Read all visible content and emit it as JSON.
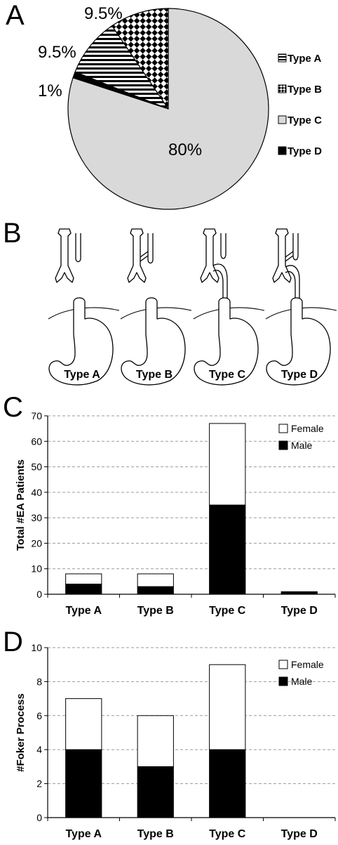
{
  "panels": {
    "a": "A",
    "b": "B",
    "c": "C",
    "d": "D"
  },
  "diagram": {
    "labels": [
      "Type A",
      "Type B",
      "Type C",
      "Type D"
    ]
  },
  "chart_data": [
    {
      "type": "pie",
      "categories": [
        "Type A",
        "Type B",
        "Type C",
        "Type D"
      ],
      "values": [
        9.5,
        9.5,
        80,
        1
      ],
      "slice_labels": [
        "9.5%",
        "9.5%",
        "80%",
        "1%"
      ],
      "fills": [
        "horizontal-stripes",
        "diamond-check",
        "#d9d9d9",
        "#000000"
      ],
      "legend_position": "right"
    },
    {
      "type": "bar",
      "stacked": true,
      "categories": [
        "Type A",
        "Type B",
        "Type C",
        "Type D"
      ],
      "series": [
        {
          "name": "Male",
          "values": [
            4,
            3,
            35,
            1
          ],
          "color": "#000000"
        },
        {
          "name": "Female",
          "values": [
            4,
            5,
            32,
            0
          ],
          "color": "#ffffff"
        }
      ],
      "ylabel": "Total #EA Patients",
      "ylim": [
        0,
        70
      ],
      "yticks": [
        "0",
        "10",
        "20",
        "30",
        "40",
        "50",
        "60",
        "70"
      ],
      "grid": true,
      "legend_position": "top-right"
    },
    {
      "type": "bar",
      "stacked": true,
      "categories": [
        "Type A",
        "Type B",
        "Type C",
        "Type D"
      ],
      "series": [
        {
          "name": "Male",
          "values": [
            4,
            3,
            4,
            0
          ],
          "color": "#000000"
        },
        {
          "name": "Female",
          "values": [
            3,
            3,
            5,
            0
          ],
          "color": "#ffffff"
        }
      ],
      "ylabel": "#Foker Process",
      "ylim": [
        0,
        10
      ],
      "yticks": [
        "0",
        "2",
        "4",
        "6",
        "8",
        "10"
      ],
      "grid": true,
      "legend_position": "top-right"
    }
  ]
}
